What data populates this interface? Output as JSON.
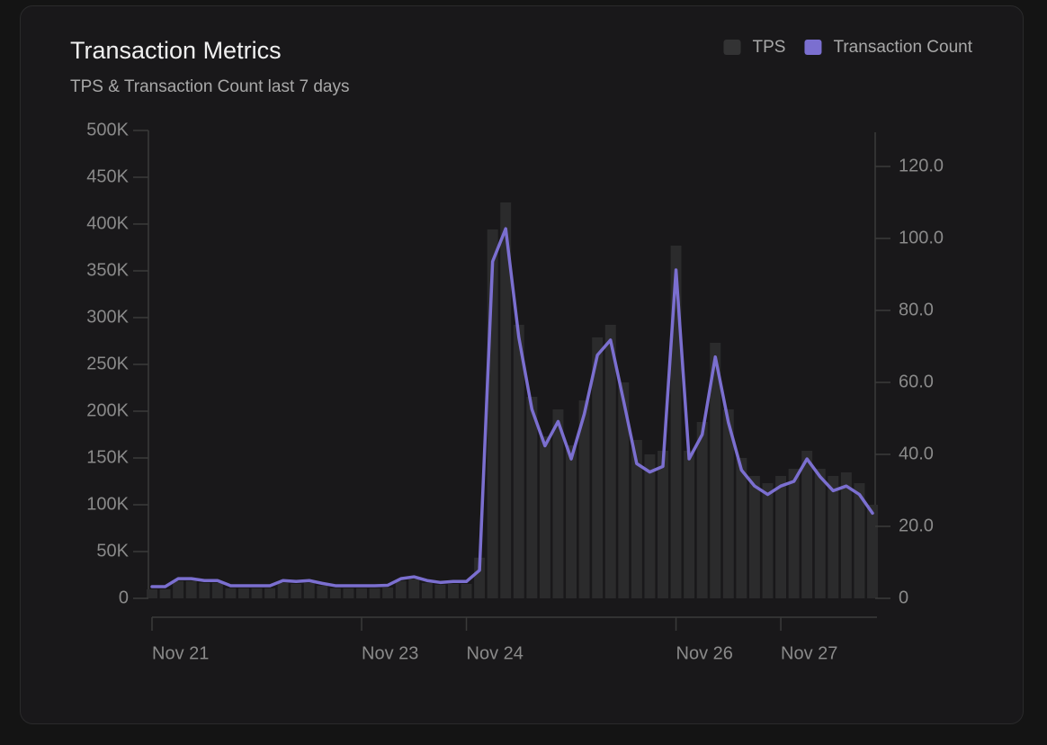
{
  "chart_data": {
    "type": "bar-line",
    "title": "Transaction Metrics",
    "subtitle": "TPS & Transaction Count last 7 days",
    "categories": [
      "Nov 21",
      null,
      null,
      null,
      null,
      null,
      null,
      null,
      null,
      null,
      null,
      null,
      null,
      null,
      null,
      null,
      "Nov 23",
      null,
      null,
      null,
      null,
      null,
      null,
      null,
      "Nov 24",
      null,
      null,
      null,
      null,
      null,
      null,
      null,
      null,
      null,
      null,
      null,
      null,
      null,
      null,
      null,
      "Nov 26",
      null,
      null,
      null,
      null,
      null,
      null,
      null,
      "Nov 27",
      null,
      null,
      null,
      null,
      null,
      null,
      null
    ],
    "series": [
      {
        "name": "TPS",
        "type": "bar",
        "axis": "y2",
        "color": "#2b2b2c",
        "values": [
          2.5,
          2.5,
          4.8,
          4.8,
          4.3,
          4.3,
          2.8,
          2.8,
          2.8,
          2.8,
          4.3,
          4.0,
          4.3,
          3.5,
          2.8,
          2.8,
          2.8,
          2.8,
          3.0,
          4.8,
          5.3,
          4.3,
          3.8,
          4.0,
          4.0,
          11.3,
          102.5,
          110,
          76,
          56,
          45,
          52.5,
          42.5,
          55,
          72.5,
          76,
          60,
          44,
          40,
          41,
          98,
          41,
          49,
          71,
          52.5,
          39,
          34,
          32,
          34,
          36,
          41,
          36,
          34,
          35,
          32,
          26
        ]
      },
      {
        "name": "Transaction Count",
        "type": "line",
        "axis": "y",
        "color": "#7b6fd0",
        "values": [
          12500,
          12500,
          21000,
          21000,
          19000,
          19000,
          13500,
          13500,
          13500,
          13500,
          19000,
          18000,
          19000,
          16000,
          13500,
          13500,
          13500,
          13500,
          14000,
          21000,
          23000,
          19000,
          17000,
          18000,
          18000,
          30000,
          360000,
          395000,
          279000,
          202000,
          163000,
          189000,
          149000,
          197000,
          260000,
          276000,
          211000,
          144000,
          135000,
          141000,
          351000,
          149000,
          175000,
          258000,
          188000,
          137000,
          120000,
          111000,
          120000,
          125000,
          149000,
          130000,
          115000,
          120000,
          111000,
          91000
        ]
      }
    ],
    "ylim": [
      0,
      500000
    ],
    "yticks": [
      0,
      {
        "value": 50000,
        "label": "50K"
      },
      {
        "value": 100000,
        "label": "100K"
      },
      {
        "value": 150000,
        "label": "150K"
      },
      {
        "value": 200000,
        "label": "200K"
      },
      {
        "value": 250000,
        "label": "250K"
      },
      {
        "value": 300000,
        "label": "300K"
      },
      {
        "value": 350000,
        "label": "350K"
      },
      {
        "value": 400000,
        "label": "400K"
      },
      {
        "value": 450000,
        "label": "450K"
      },
      {
        "value": 500000,
        "label": "500K"
      }
    ],
    "y2lim": [
      0,
      130
    ],
    "y2ticks": [
      0,
      {
        "value": 20,
        "label": "20.0"
      },
      {
        "value": 40,
        "label": "40.0"
      },
      {
        "value": 60,
        "label": "60.0"
      },
      {
        "value": 80,
        "label": "80.0"
      },
      {
        "value": 100,
        "label": "100.0"
      },
      {
        "value": 120,
        "label": "120.0"
      }
    ]
  }
}
